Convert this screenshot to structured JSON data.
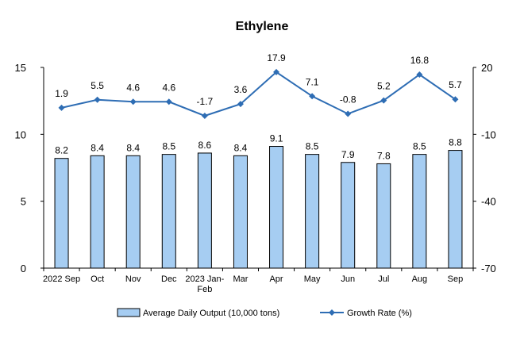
{
  "chart_data": {
    "type": "bar",
    "title": "Ethylene",
    "categories": [
      "2022 Sep",
      "Oct",
      "Nov",
      "Dec",
      "2023 Jan-Feb",
      "Mar",
      "Apr",
      "May",
      "Jun",
      "Jul",
      "Aug",
      "Sep"
    ],
    "category_lines": [
      [
        "2022 Sep"
      ],
      [
        "Oct"
      ],
      [
        "Nov"
      ],
      [
        "Dec"
      ],
      [
        "2023 Jan-",
        "Feb"
      ],
      [
        "Mar"
      ],
      [
        "Apr"
      ],
      [
        "May"
      ],
      [
        "Jun"
      ],
      [
        "Jul"
      ],
      [
        "Aug"
      ],
      [
        "Sep"
      ]
    ],
    "series": [
      {
        "name": "Average Daily Output (10,000 tons)",
        "type": "bar",
        "axis": "left",
        "values": [
          8.2,
          8.4,
          8.4,
          8.5,
          8.6,
          8.4,
          9.1,
          8.5,
          7.9,
          7.8,
          8.5,
          8.8
        ],
        "labels": [
          "8.2",
          "8.4",
          "8.4",
          "8.5",
          "8.6",
          "8.4",
          "9.1",
          "8.5",
          "7.9",
          "7.8",
          "8.5",
          "8.8"
        ],
        "color": "#a6cdf2"
      },
      {
        "name": "Growth Rate (%)",
        "type": "line",
        "axis": "right",
        "values": [
          1.9,
          5.5,
          4.6,
          4.6,
          -1.7,
          3.6,
          17.9,
          7.1,
          -0.8,
          5.2,
          16.8,
          5.7
        ],
        "labels": [
          "1.9",
          "5.5",
          "4.6",
          "4.6",
          "-1.7",
          "3.6",
          "17.9",
          "7.1",
          "-0.8",
          "5.2",
          "16.8",
          "5.7"
        ],
        "color": "#2e6db4"
      }
    ],
    "y_left": {
      "range": [
        0,
        15
      ],
      "ticks": [
        0,
        5,
        10,
        15
      ]
    },
    "y_right": {
      "range": [
        -70,
        20
      ],
      "ticks": [
        -70,
        -40,
        -10,
        20
      ]
    },
    "grid": false,
    "legend_position": "bottom"
  }
}
